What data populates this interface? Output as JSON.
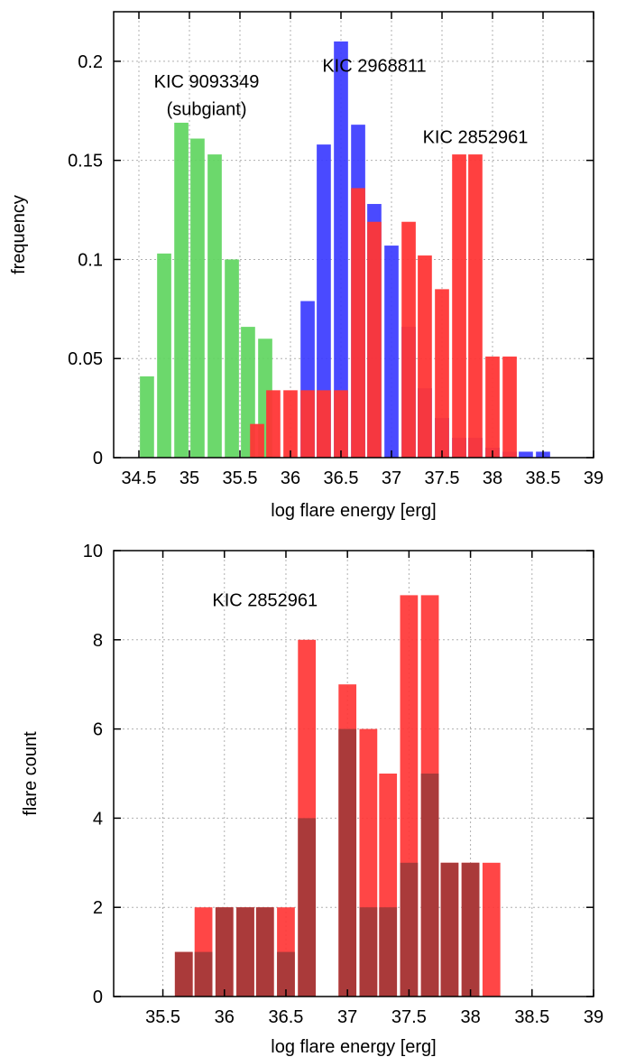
{
  "chart_data": [
    {
      "type": "bar",
      "xlabel": "log flare energy [erg]",
      "ylabel": "frequency",
      "xlim": [
        34.25,
        39
      ],
      "ylim": [
        0,
        0.225
      ],
      "xticks": [
        34.5,
        35,
        35.5,
        36,
        36.5,
        37,
        37.5,
        38,
        38.5,
        39
      ],
      "xtick_labels": [
        "34.5",
        "35",
        "35.5",
        "36",
        "36.5",
        "37",
        "37.5",
        "38",
        "38.5",
        "39"
      ],
      "yticks": [
        0,
        0.05,
        0.1,
        0.15,
        0.2
      ],
      "ytick_labels": [
        "0",
        "0.05",
        "0.1",
        "0.15",
        "0.2"
      ],
      "bin_width": 0.1667,
      "grid": true,
      "series": [
        {
          "color": "#5fd55f",
          "x": [
            34.58,
            34.75,
            34.92,
            35.08,
            35.25,
            35.42,
            35.58,
            35.75
          ],
          "values": [
            0.041,
            0.103,
            0.169,
            0.161,
            0.153,
            0.1,
            0.066,
            0.06
          ]
        },
        {
          "color": "#3b3bff",
          "x": [
            36.0,
            36.17,
            36.33,
            36.5,
            36.67,
            36.83,
            37.0,
            37.17,
            37.33,
            37.5,
            37.67,
            37.83,
            38.0,
            38.17,
            38.33,
            38.5
          ],
          "values": [
            0.0,
            0.079,
            0.158,
            0.21,
            0.168,
            0.128,
            0.107,
            0.066,
            0.035,
            0.02,
            0.01,
            0.01,
            0.005,
            0.003,
            0.003,
            0.003
          ]
        },
        {
          "color": "#ff3636",
          "x": [
            35.67,
            35.83,
            36.0,
            36.17,
            36.33,
            36.5,
            36.67,
            36.83,
            37.0,
            37.17,
            37.33,
            37.5,
            37.67,
            37.83,
            38.0,
            38.17,
            38.33
          ],
          "values": [
            0.017,
            0.034,
            0.034,
            0.034,
            0.034,
            0.034,
            0.136,
            0.119,
            0.0,
            0.119,
            0.102,
            0.085,
            0.153,
            0.153,
            0.051,
            0.051,
            0.0
          ]
        }
      ],
      "annotations": [
        {
          "text": "KIC 9093349",
          "x": 35.17,
          "y": 0.19
        },
        {
          "text": "(subgiant)",
          "x": 35.17,
          "y": 0.176
        },
        {
          "text": "KIC 2968811",
          "x": 36.83,
          "y": 0.198
        },
        {
          "text": "KIC 2852961",
          "x": 37.83,
          "y": 0.162
        }
      ]
    },
    {
      "type": "bar",
      "xlabel": "log flare energy [erg]",
      "ylabel": "flare count",
      "xlim": [
        35.1,
        39
      ],
      "ylim": [
        0,
        10
      ],
      "xticks": [
        35.5,
        36,
        36.5,
        37,
        37.5,
        38,
        38.5,
        39
      ],
      "xtick_labels": [
        "35.5",
        "36",
        "36.5",
        "37",
        "37.5",
        "38",
        "38.5",
        "39"
      ],
      "yticks": [
        0,
        2,
        4,
        6,
        8,
        10
      ],
      "ytick_labels": [
        "0",
        "2",
        "4",
        "6",
        "8",
        "10"
      ],
      "bin_width": 0.1667,
      "grid": true,
      "series": [
        {
          "color": "#ff3636",
          "x": [
            35.67,
            35.83,
            36.0,
            36.17,
            36.33,
            36.5,
            36.67,
            36.83,
            37.0,
            37.17,
            37.33,
            37.5,
            37.67,
            37.83,
            38.0,
            38.17
          ],
          "values": [
            1,
            2,
            2,
            2,
            2,
            2,
            8,
            0,
            7,
            6,
            5,
            9,
            9,
            3,
            3,
            3
          ]
        },
        {
          "color": "#a33a3a",
          "x": [
            35.67,
            35.83,
            36.0,
            36.17,
            36.33,
            36.5,
            36.67,
            36.83,
            37.0,
            37.17,
            37.33,
            37.5,
            37.67,
            37.83,
            38.0,
            38.17
          ],
          "values": [
            1,
            1,
            2,
            2,
            2,
            1,
            4,
            0,
            6,
            2,
            2,
            3,
            5,
            3,
            3,
            0
          ]
        }
      ],
      "annotations": [
        {
          "text": "KIC 2852961",
          "x": 36.33,
          "y": 8.9
        }
      ]
    }
  ]
}
